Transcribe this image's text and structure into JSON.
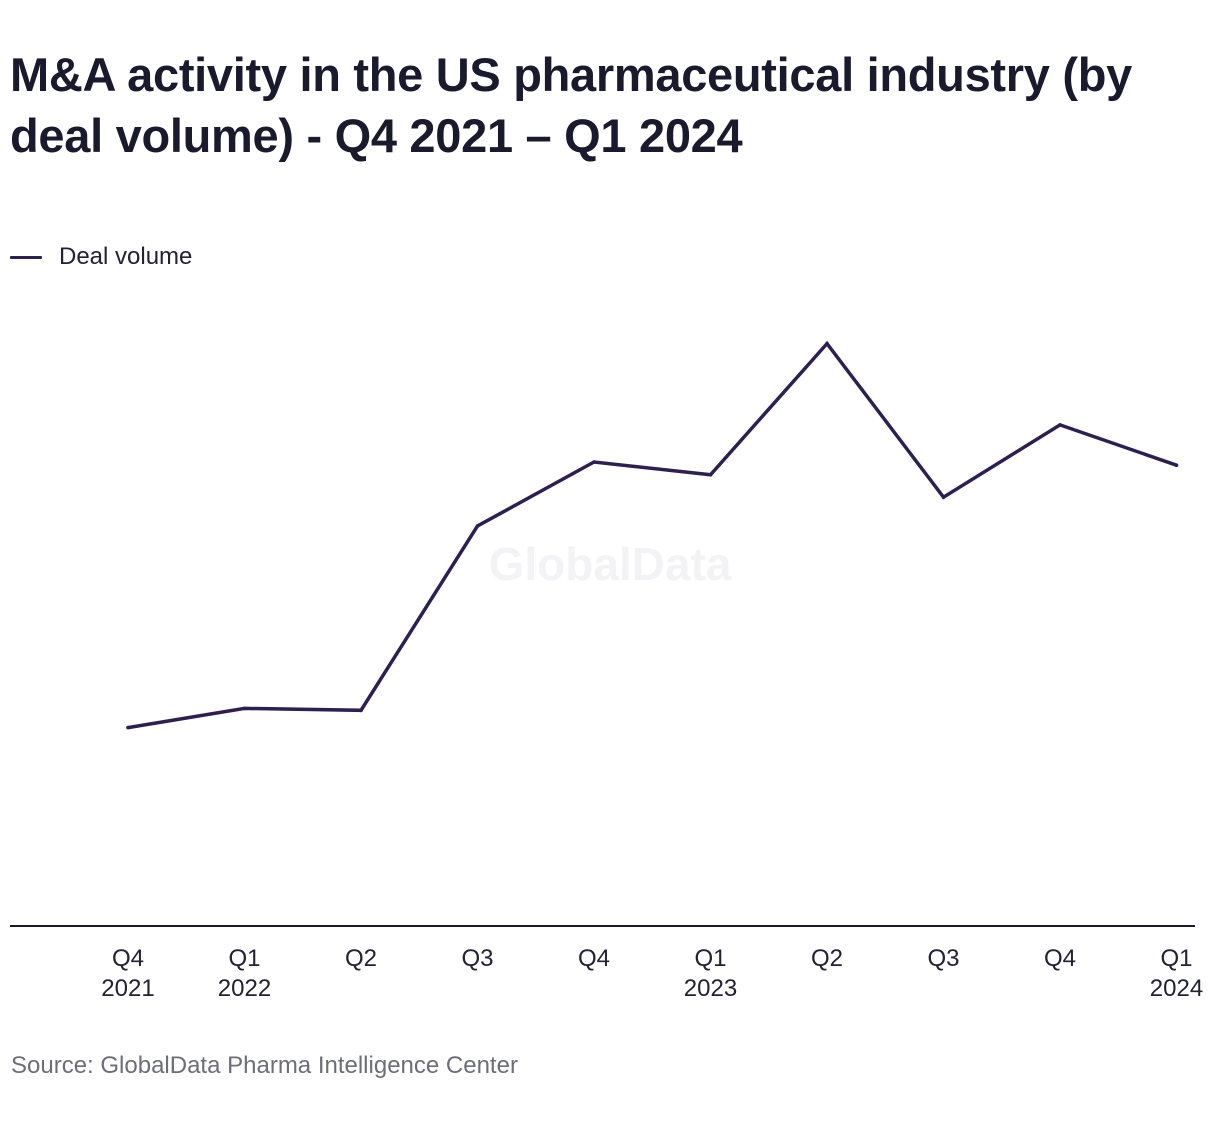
{
  "chart_data": {
    "type": "line",
    "title": "M&A activity in the US pharmaceutical industry (by deal volume) - Q4 2021 – Q1 2024",
    "xlabel": "",
    "ylabel": "",
    "categories": [
      {
        "quarter": "Q4",
        "year": "2021"
      },
      {
        "quarter": "Q1",
        "year": "2022"
      },
      {
        "quarter": "Q2",
        "year": ""
      },
      {
        "quarter": "Q3",
        "year": ""
      },
      {
        "quarter": "Q4",
        "year": ""
      },
      {
        "quarter": "Q1",
        "year": "2023"
      },
      {
        "quarter": "Q2",
        "year": ""
      },
      {
        "quarter": "Q3",
        "year": ""
      },
      {
        "quarter": "Q4",
        "year": ""
      },
      {
        "quarter": "Q1",
        "year": "2024"
      }
    ],
    "series": [
      {
        "name": "Deal volume",
        "color": "#2e1f52",
        "values": [
          31,
          34,
          33.7,
          62.5,
          72.5,
          70.5,
          91,
          67,
          78.3,
          72
        ]
      }
    ],
    "ylim": [
      0,
      120
    ],
    "grid": false,
    "legend_position": "top-left",
    "watermark": "GlobalData"
  },
  "source": "Source: GlobalData Pharma Intelligence Center"
}
